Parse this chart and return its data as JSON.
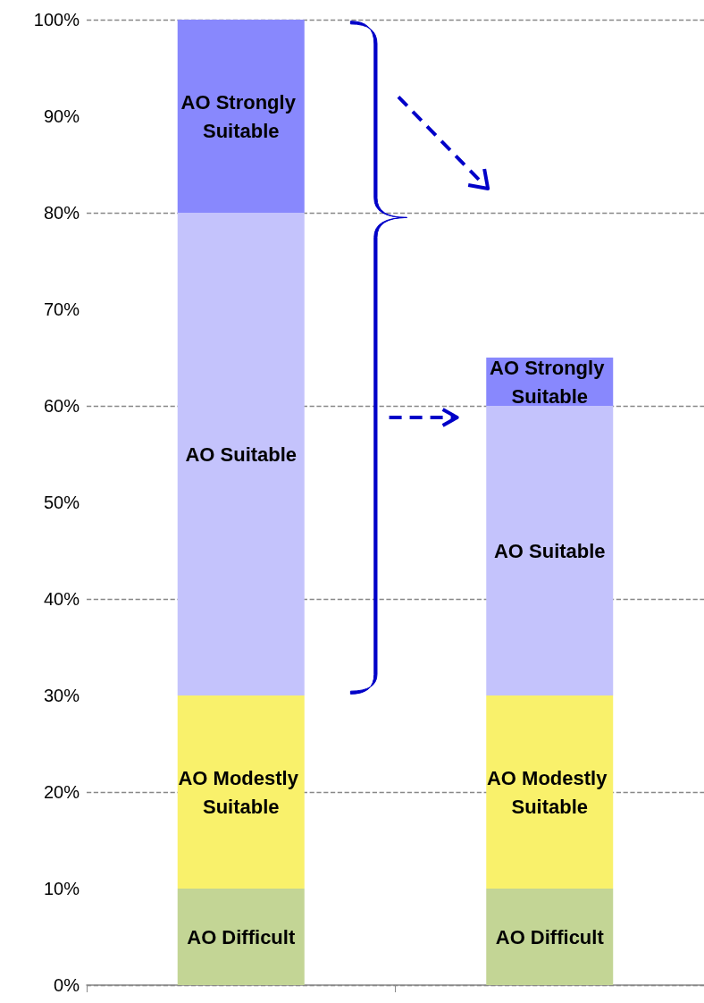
{
  "chart_data": {
    "type": "bar",
    "stacked": true,
    "categories": [
      null,
      null
    ],
    "series": [
      {
        "name": "AO Difficult",
        "color": "#c3d595",
        "values": [
          10,
          10
        ]
      },
      {
        "name": "AO Modestly Suitable",
        "color": "#f9f16b",
        "values": [
          20,
          20
        ]
      },
      {
        "name": "AO Suitable",
        "color": "#c4c3fc",
        "values": [
          50,
          30
        ]
      },
      {
        "name": "AO Strongly Suitable",
        "color": "#8888fd",
        "values": [
          20,
          5
        ]
      }
    ],
    "ylim": [
      0,
      100
    ],
    "yticks": [
      {
        "value": 0,
        "label": "0%"
      },
      {
        "value": 10,
        "label": "10%"
      },
      {
        "value": 20,
        "label": "20%"
      },
      {
        "value": 30,
        "label": "30%"
      },
      {
        "value": 40,
        "label": "40%"
      },
      {
        "value": 50,
        "label": "50%"
      },
      {
        "value": 60,
        "label": "60%"
      },
      {
        "value": 70,
        "label": "70%"
      },
      {
        "value": 80,
        "label": "80%"
      },
      {
        "value": 90,
        "label": "90%"
      },
      {
        "value": 100,
        "label": "100%"
      }
    ],
    "grid": "y",
    "legend": false
  }
}
